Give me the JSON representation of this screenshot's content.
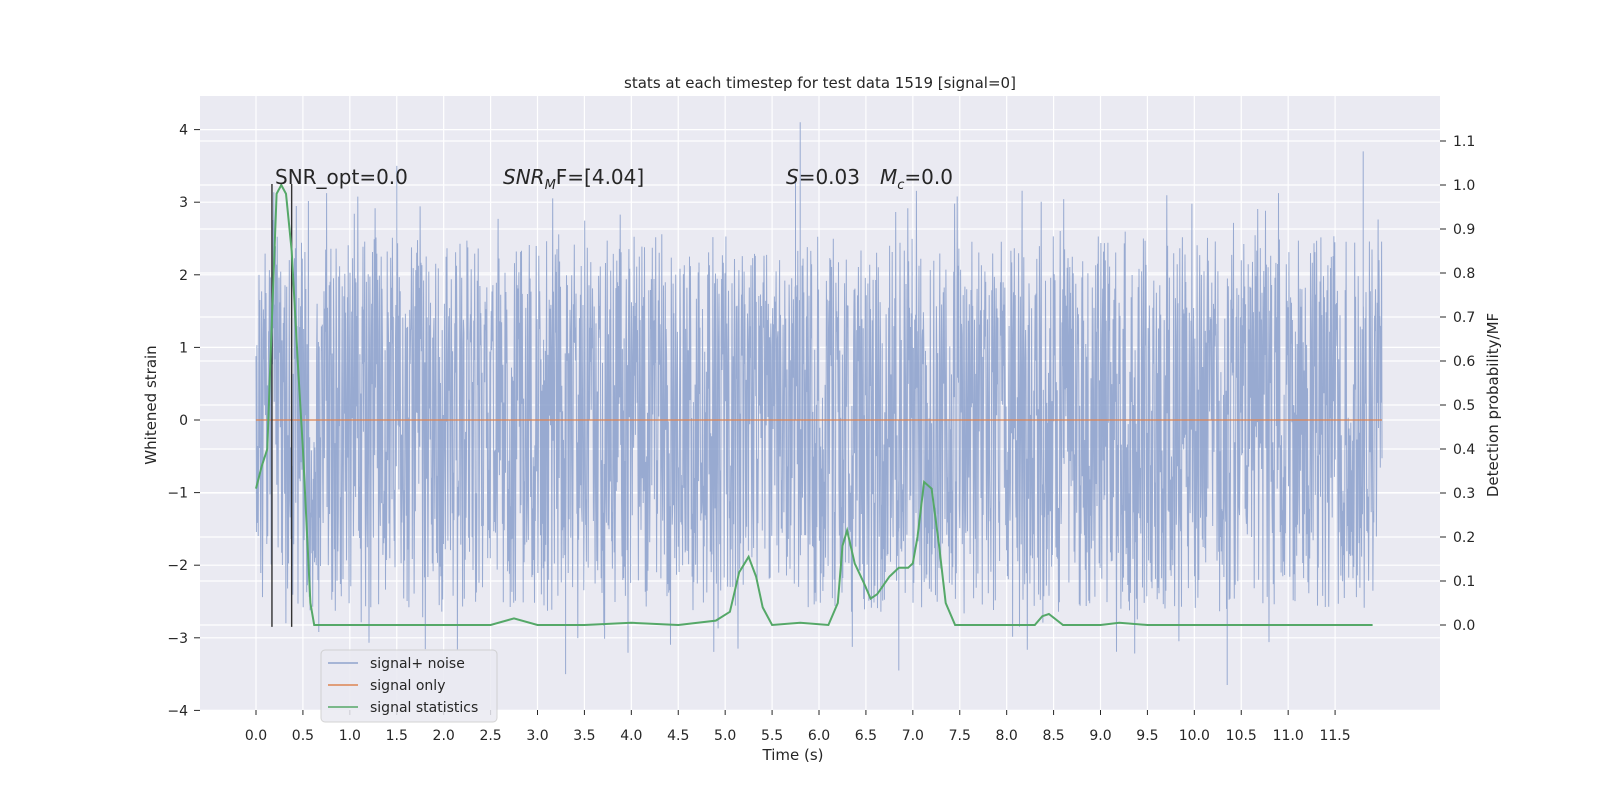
{
  "chart_data": {
    "type": "line",
    "title": "stats at each timestep for test data 1519 [signal=0]",
    "xlabel": "Time (s)",
    "ylabel": "Whitened strain",
    "ylabel_right": "Detection probability/MF",
    "xlim": [
      -0.5,
      12.5
    ],
    "ylim": [
      -4.1,
      4.4
    ],
    "ylim_right": [
      -0.2,
      1.2
    ],
    "x_ticks": [
      "0.0",
      "0.5",
      "1.0",
      "1.5",
      "2.0",
      "2.5",
      "3.0",
      "3.5",
      "4.0",
      "4.5",
      "5.0",
      "5.5",
      "6.0",
      "6.5",
      "7.0",
      "7.5",
      "8.0",
      "8.5",
      "9.0",
      "9.5",
      "10.0",
      "10.5",
      "11.0",
      "11.5"
    ],
    "y_ticks": [
      "4",
      "3",
      "2",
      "1",
      "0",
      "−1",
      "−2",
      "−3",
      "−4"
    ],
    "y_ticks_right": [
      "1.1",
      "1.0",
      "0.9",
      "0.8",
      "0.7",
      "0.6",
      "0.5",
      "0.4",
      "0.3",
      "0.2",
      "0.1",
      "0.0"
    ],
    "grid": true,
    "legend_placement": "lower-left",
    "annotations": {
      "snr_opt": "SNR_opt=0.0",
      "snr_mf_main": "SNR",
      "snr_mf_sub": "M",
      "snr_mf_rest": "F=[4.04]",
      "s_main": "S",
      "s_rest": "=0.03",
      "mc_main": "M",
      "mc_sub": "c",
      "mc_rest": "=0.0"
    },
    "vlines_x": [
      0.17,
      0.38
    ],
    "vlines_y_range": [
      -2.85,
      3.25
    ],
    "series": [
      {
        "name": "signal+ noise",
        "color": "#8fa3cd",
        "x_range": [
          0.0,
          12.0
        ],
        "envelope_upper_typical": 2.2,
        "envelope_lower_typical": -2.3,
        "peaks": [
          {
            "x": 5.8,
            "y": 4.1
          },
          {
            "x": 11.8,
            "y": 3.7
          },
          {
            "x": 1.5,
            "y": 3.5
          },
          {
            "x": 5.75,
            "y": 3.35
          },
          {
            "x": 10.35,
            "y": -3.65
          },
          {
            "x": 3.3,
            "y": -3.5
          },
          {
            "x": 6.85,
            "y": -3.45
          }
        ]
      },
      {
        "name": "signal only",
        "color": "#dd8452",
        "values": [
          [
            0.0,
            0.0
          ],
          [
            12.0,
            0.0
          ]
        ]
      },
      {
        "name": "signal statistics",
        "color": "#55a868",
        "axis": "right",
        "points": [
          [
            0.0,
            0.31
          ],
          [
            0.06,
            0.36
          ],
          [
            0.12,
            0.4
          ],
          [
            0.17,
            0.7
          ],
          [
            0.22,
            0.98
          ],
          [
            0.27,
            1.0
          ],
          [
            0.32,
            0.98
          ],
          [
            0.38,
            0.85
          ],
          [
            0.45,
            0.58
          ],
          [
            0.5,
            0.4
          ],
          [
            0.58,
            0.05
          ],
          [
            0.62,
            0.0
          ],
          [
            1.0,
            0.0
          ],
          [
            2.0,
            0.0
          ],
          [
            2.5,
            0.0
          ],
          [
            2.75,
            0.015
          ],
          [
            3.0,
            0.0
          ],
          [
            3.5,
            0.0
          ],
          [
            4.0,
            0.005
          ],
          [
            4.5,
            0.0
          ],
          [
            4.9,
            0.01
          ],
          [
            5.05,
            0.03
          ],
          [
            5.15,
            0.12
          ],
          [
            5.25,
            0.155
          ],
          [
            5.33,
            0.11
          ],
          [
            5.4,
            0.04
          ],
          [
            5.5,
            0.0
          ],
          [
            5.8,
            0.005
          ],
          [
            6.1,
            0.0
          ],
          [
            6.2,
            0.05
          ],
          [
            6.25,
            0.18
          ],
          [
            6.3,
            0.215
          ],
          [
            6.38,
            0.14
          ],
          [
            6.48,
            0.095
          ],
          [
            6.55,
            0.06
          ],
          [
            6.62,
            0.07
          ],
          [
            6.75,
            0.11
          ],
          [
            6.85,
            0.13
          ],
          [
            6.95,
            0.13
          ],
          [
            7.0,
            0.14
          ],
          [
            7.05,
            0.2
          ],
          [
            7.12,
            0.325
          ],
          [
            7.2,
            0.31
          ],
          [
            7.28,
            0.18
          ],
          [
            7.35,
            0.05
          ],
          [
            7.45,
            0.0
          ],
          [
            8.0,
            0.0
          ],
          [
            8.3,
            0.0
          ],
          [
            8.38,
            0.02
          ],
          [
            8.45,
            0.025
          ],
          [
            8.6,
            0.0
          ],
          [
            9.0,
            0.0
          ],
          [
            9.2,
            0.005
          ],
          [
            9.5,
            0.0
          ],
          [
            10.0,
            0.0
          ],
          [
            11.0,
            0.0
          ],
          [
            11.9,
            0.0
          ]
        ]
      }
    ]
  }
}
